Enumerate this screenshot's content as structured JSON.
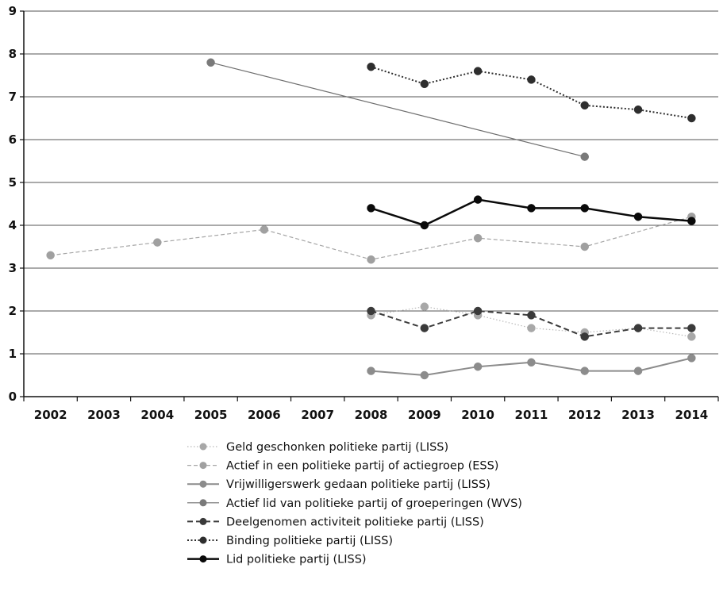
{
  "chart_data": {
    "type": "line",
    "title": "",
    "xlabel": "",
    "ylabel": "",
    "ylim": [
      0,
      9
    ],
    "yticks": [
      0,
      1,
      2,
      3,
      4,
      5,
      6,
      7,
      8,
      9
    ],
    "categories": [
      2002,
      2003,
      2004,
      2005,
      2006,
      2007,
      2008,
      2009,
      2010,
      2011,
      2012,
      2013,
      2014
    ],
    "grid": "horizontal",
    "legend_position": "bottom",
    "series": [
      {
        "name": "Geld geschonken politieke partij (LISS)",
        "color": "#b8b8b8",
        "dash": "dotted-fine",
        "marker": "#a8a8a8",
        "width": 1.2,
        "points": [
          [
            2008,
            1.9
          ],
          [
            2009,
            2.1
          ],
          [
            2010,
            1.9
          ],
          [
            2011,
            1.6
          ],
          [
            2012,
            1.5
          ],
          [
            2013,
            1.6
          ],
          [
            2014,
            1.4
          ]
        ]
      },
      {
        "name": "Actief in een politieke partij of actiegroep (ESS)",
        "color": "#a6a6a6",
        "dash": "dashed-fine",
        "marker": "#a0a0a0",
        "width": 1.2,
        "points": [
          [
            2002,
            3.3
          ],
          [
            2004,
            3.6
          ],
          [
            2006,
            3.9
          ],
          [
            2008,
            3.2
          ],
          [
            2010,
            3.7
          ],
          [
            2012,
            3.5
          ],
          [
            2014,
            4.2
          ]
        ]
      },
      {
        "name": "Vrijwilligerswerk gedaan politieke partij (LISS)",
        "color": "#8c8c8c",
        "dash": "solid",
        "marker": "#8c8c8c",
        "width": 2,
        "points": [
          [
            2008,
            0.6
          ],
          [
            2009,
            0.5
          ],
          [
            2010,
            0.7
          ],
          [
            2011,
            0.8
          ],
          [
            2012,
            0.6
          ],
          [
            2013,
            0.6
          ],
          [
            2014,
            0.9
          ]
        ]
      },
      {
        "name": "Actief lid van politieke partij of groeperingen (WVS)",
        "color": "#6e6e6e",
        "dash": "solid",
        "marker": "#7a7a7a",
        "width": 1.2,
        "points": [
          [
            2005,
            7.8
          ],
          [
            2012,
            5.6
          ]
        ]
      },
      {
        "name": "Deelgenomen activiteit politieke partij  (LISS)",
        "color": "#3c3c3c",
        "dash": "dashed",
        "marker": "#3a3a3a",
        "width": 2,
        "points": [
          [
            2008,
            2.0
          ],
          [
            2009,
            1.6
          ],
          [
            2010,
            2.0
          ],
          [
            2011,
            1.9
          ],
          [
            2012,
            1.4
          ],
          [
            2013,
            1.6
          ],
          [
            2014,
            1.6
          ]
        ]
      },
      {
        "name": "Binding politieke partij (LISS)",
        "color": "#2e2e2e",
        "dash": "dotted",
        "marker": "#2e2e2e",
        "width": 2,
        "points": [
          [
            2008,
            7.7
          ],
          [
            2009,
            7.3
          ],
          [
            2010,
            7.6
          ],
          [
            2011,
            7.4
          ],
          [
            2012,
            6.8
          ],
          [
            2013,
            6.7
          ],
          [
            2014,
            6.5
          ]
        ]
      },
      {
        "name": "Lid politieke partij (LISS)",
        "color": "#0a0a0a",
        "dash": "solid",
        "marker": "#0a0a0a",
        "width": 2.5,
        "points": [
          [
            2008,
            4.4
          ],
          [
            2009,
            4.0
          ],
          [
            2010,
            4.6
          ],
          [
            2011,
            4.4
          ],
          [
            2012,
            4.4
          ],
          [
            2013,
            4.2
          ],
          [
            2014,
            4.1
          ]
        ]
      }
    ]
  }
}
